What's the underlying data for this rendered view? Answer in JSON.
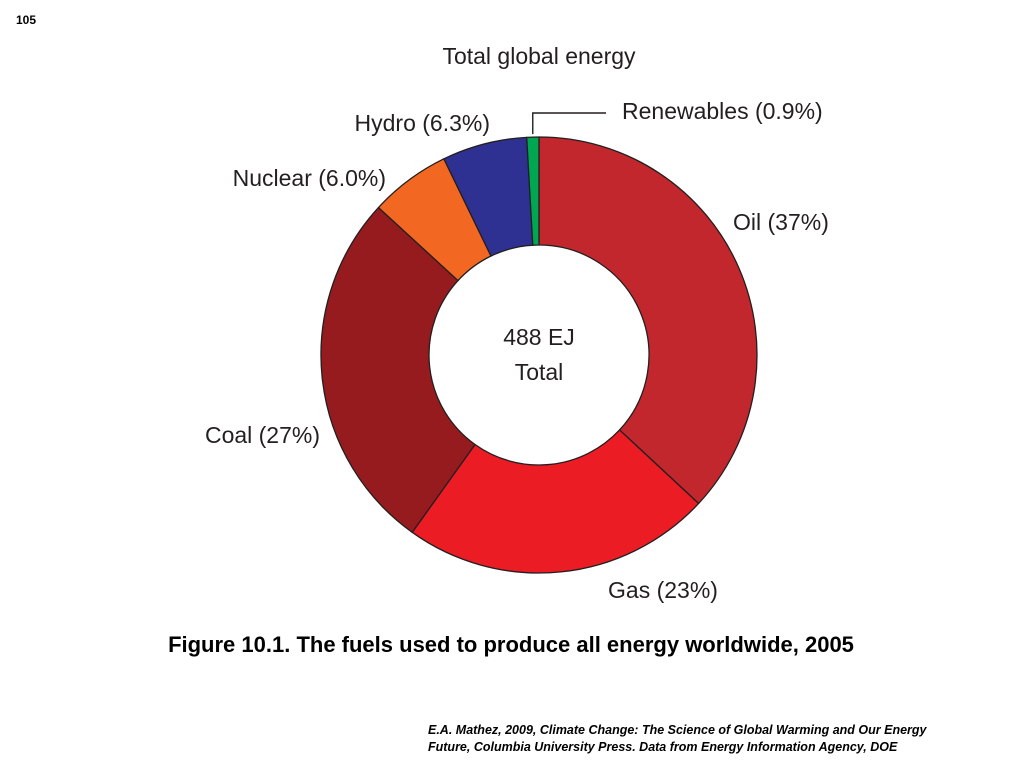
{
  "slide": {
    "number": "105"
  },
  "caption": "Figure 10.1.  The fuels used to produce all energy worldwide, 2005",
  "source": {
    "line1": "E.A. Mathez, 2009, Climate Change: The Science of Global Warming and Our Energy",
    "line2": "Future, Columbia University Press. Data from Energy Information Agency, DOE"
  },
  "chart_data": {
    "type": "pie",
    "variant": "donut",
    "title": "Total global energy",
    "center_text": [
      "488 EJ",
      "Total"
    ],
    "start": "top, clockwise",
    "legend": "none (labels beside slices)",
    "slices": [
      {
        "label": "Oil (37%)",
        "name": "Oil",
        "value": 37,
        "color": "#c1272d"
      },
      {
        "label": "Gas (23%)",
        "name": "Gas",
        "value": 23,
        "color": "#ec1c24"
      },
      {
        "label": "Coal (27%)",
        "name": "Coal",
        "value": 27,
        "color": "#961b1e"
      },
      {
        "label": "Nuclear (6.0%)",
        "name": "Nuclear",
        "value": 6.0,
        "color": "#f26722"
      },
      {
        "label": "Hydro (6.3%)",
        "name": "Hydro",
        "value": 6.3,
        "color": "#2e3192"
      },
      {
        "label": "Renewables (0.9%)",
        "name": "Renewables",
        "value": 0.9,
        "color": "#00a651"
      }
    ]
  }
}
